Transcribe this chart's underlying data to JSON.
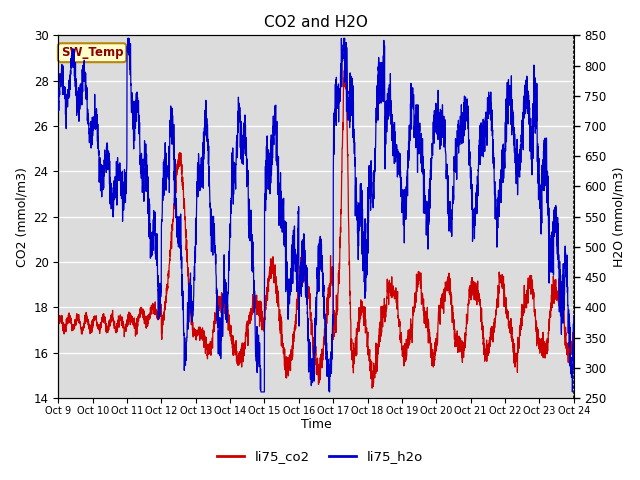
{
  "title": "CO2 and H2O",
  "xlabel": "Time",
  "ylabel_left": "CO2 (mmol/m3)",
  "ylabel_right": "H2O (mmol/m3)",
  "ylim_left": [
    14,
    30
  ],
  "ylim_right": [
    250,
    850
  ],
  "yticks_left": [
    14,
    16,
    18,
    20,
    22,
    24,
    26,
    28,
    30
  ],
  "yticks_right": [
    250,
    300,
    350,
    400,
    450,
    500,
    550,
    600,
    650,
    700,
    750,
    800,
    850
  ],
  "xtick_labels": [
    "Oct 9",
    "Oct 10",
    "Oct 11",
    "Oct 12",
    "Oct 13",
    "Oct 14",
    "Oct 15",
    "Oct 16",
    "Oct 17",
    "Oct 18",
    "Oct 19",
    "Oct 20",
    "Oct 21",
    "Oct 22",
    "Oct 23",
    "Oct 24"
  ],
  "color_co2": "#cc0000",
  "color_h2o": "#0000cc",
  "bg_color": "#dcdcdc",
  "legend_label_co2": "li75_co2",
  "legend_label_h2o": "li75_h2o",
  "annotation_label": "SW_Temp",
  "annotation_bg": "#ffffcc",
  "annotation_border": "#b8860b",
  "annotation_text_color": "#8b0000",
  "n_points": 3000
}
